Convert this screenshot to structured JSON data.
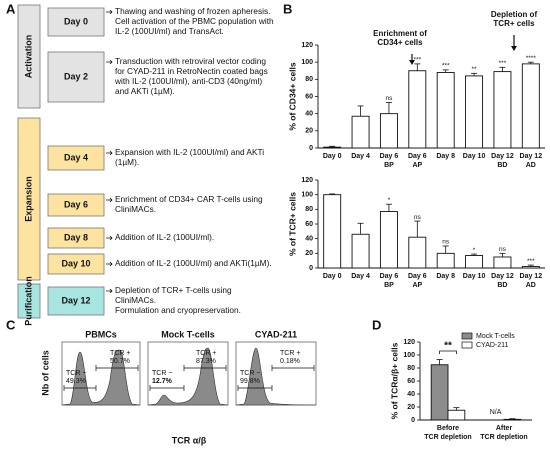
{
  "panels": [
    "A",
    "B",
    "C",
    "D"
  ],
  "timeline": {
    "sections": [
      "Activation",
      "Expansion",
      "Purification"
    ],
    "steps": [
      {
        "day": "Day 0",
        "lines": [
          "Thawing and washing of frozen apheresis.",
          "Cell activation of the PBMC population with",
          "IL-2 (100UI/ml) and TransAct."
        ]
      },
      {
        "day": "Day 2",
        "lines": [
          "Transduction with retroviral vector coding",
          "for CYAD-211 in RetroNectin coated bags",
          "with IL-2 (100UI/ml), anti-CD3 (40ng/ml)",
          "and AKTi (1µM)."
        ]
      },
      {
        "day": "Day 4",
        "lines": [
          "Expansion with IL-2 (100UI/ml) and AKTi",
          "(1µM)."
        ]
      },
      {
        "day": "Day 6",
        "lines": [
          "Enrichment of CD34+ CAR T-cells using",
          "CliniMACs."
        ]
      },
      {
        "day": "Day 8",
        "lines": [
          "Addition of IL-2 (100UI/ml)."
        ]
      },
      {
        "day": "Day 10",
        "lines": [
          "Addition of IL-2 (100UI/ml) and AKTi(1µM)."
        ]
      },
      {
        "day": "Day 12",
        "lines": [
          "Depletion of TCR+ T-cells using",
          "CliniMACs.",
          "Formulation and cryopreservation."
        ]
      }
    ]
  },
  "flow": {
    "y_label": "Nb of cells",
    "x_label": "TCR α/β",
    "plots": [
      {
        "title": "PBMCs",
        "neg": "TCR −",
        "neg_pct": "49.3%",
        "pos": "TCR +",
        "pos_pct": "50.7%"
      },
      {
        "title": "Mock T-cells",
        "neg": "TCR −",
        "neg_pct": "12.7%",
        "pos": "TCR +",
        "pos_pct": "87.3%"
      },
      {
        "title": "CYAD-211",
        "neg": "TCR −",
        "neg_pct": "99.8%",
        "pos": "TCR +",
        "pos_pct": "0.18%"
      }
    ]
  },
  "chart_data": [
    {
      "type": "bar",
      "y_label": "% of CD34+ cells",
      "categories": [
        [
          "Day 0"
        ],
        [
          "Day 4"
        ],
        [
          "Day 6",
          "BP"
        ],
        [
          "Day 6",
          "AP"
        ],
        [
          "Day 8"
        ],
        [
          "Day 10"
        ],
        [
          "Day 12",
          "BD"
        ],
        [
          "Day 12",
          "AD"
        ]
      ],
      "values": [
        1,
        37,
        40,
        90,
        88,
        84,
        89,
        98
      ],
      "errors": [
        1,
        12,
        13,
        8,
        3,
        3,
        5,
        2
      ],
      "significance": [
        null,
        null,
        "ns",
        "***",
        "***",
        "**",
        "***",
        "****"
      ],
      "color": "#ffffff",
      "annotations": [
        {
          "lines": [
            "Enrichment of",
            "CD34+ cells"
          ]
        },
        {
          "lines": [
            "Depletion of",
            "TCR+ cells"
          ]
        }
      ],
      "ylim": [
        0,
        120
      ],
      "yticks": [
        0,
        20,
        40,
        60,
        80,
        100,
        120
      ]
    },
    {
      "type": "bar",
      "y_label": "% of TCR+ cells",
      "categories": [
        [
          "Day 0"
        ],
        [
          "Day 4"
        ],
        [
          "Day 6",
          "BP"
        ],
        [
          "Day 6",
          "AP"
        ],
        [
          "Day 8"
        ],
        [
          "Day 10"
        ],
        [
          "Day 12",
          "BD"
        ],
        [
          "Day 12",
          "AD"
        ]
      ],
      "values": [
        100,
        46,
        77,
        42,
        20,
        17,
        15,
        2
      ],
      "errors": [
        1,
        15,
        10,
        22,
        10,
        2,
        5,
        2
      ],
      "significance": [
        null,
        null,
        "*",
        "ns",
        "ns",
        "*",
        "ns",
        "***"
      ],
      "color": "#ffffff",
      "annotations": [],
      "ylim": [
        0,
        120
      ],
      "yticks": [
        0,
        20,
        40,
        60,
        80,
        100,
        120
      ]
    },
    {
      "type": "grouped_bar",
      "y_label": "% of TCRα/β+ cells",
      "categories": [
        [
          "Before",
          "TCR depletion"
        ],
        [
          "After",
          "TCR depletion"
        ]
      ],
      "series": [
        {
          "name": "Mock T-cells",
          "color": "#8c8c8c",
          "values": [
            85,
            null
          ],
          "errors": [
            8,
            null
          ]
        },
        {
          "name": "CYAD-211",
          "color": "#ffffff",
          "values": [
            15,
            1
          ],
          "errors": [
            4,
            1
          ]
        }
      ],
      "annotations": [
        {
          "lines": [
            "**"
          ]
        },
        {
          "lines": [
            "N/A"
          ]
        }
      ],
      "legend": "top-right",
      "ylim": [
        0,
        120
      ],
      "yticks": [
        0,
        20,
        40,
        60,
        80,
        100,
        120
      ]
    }
  ]
}
